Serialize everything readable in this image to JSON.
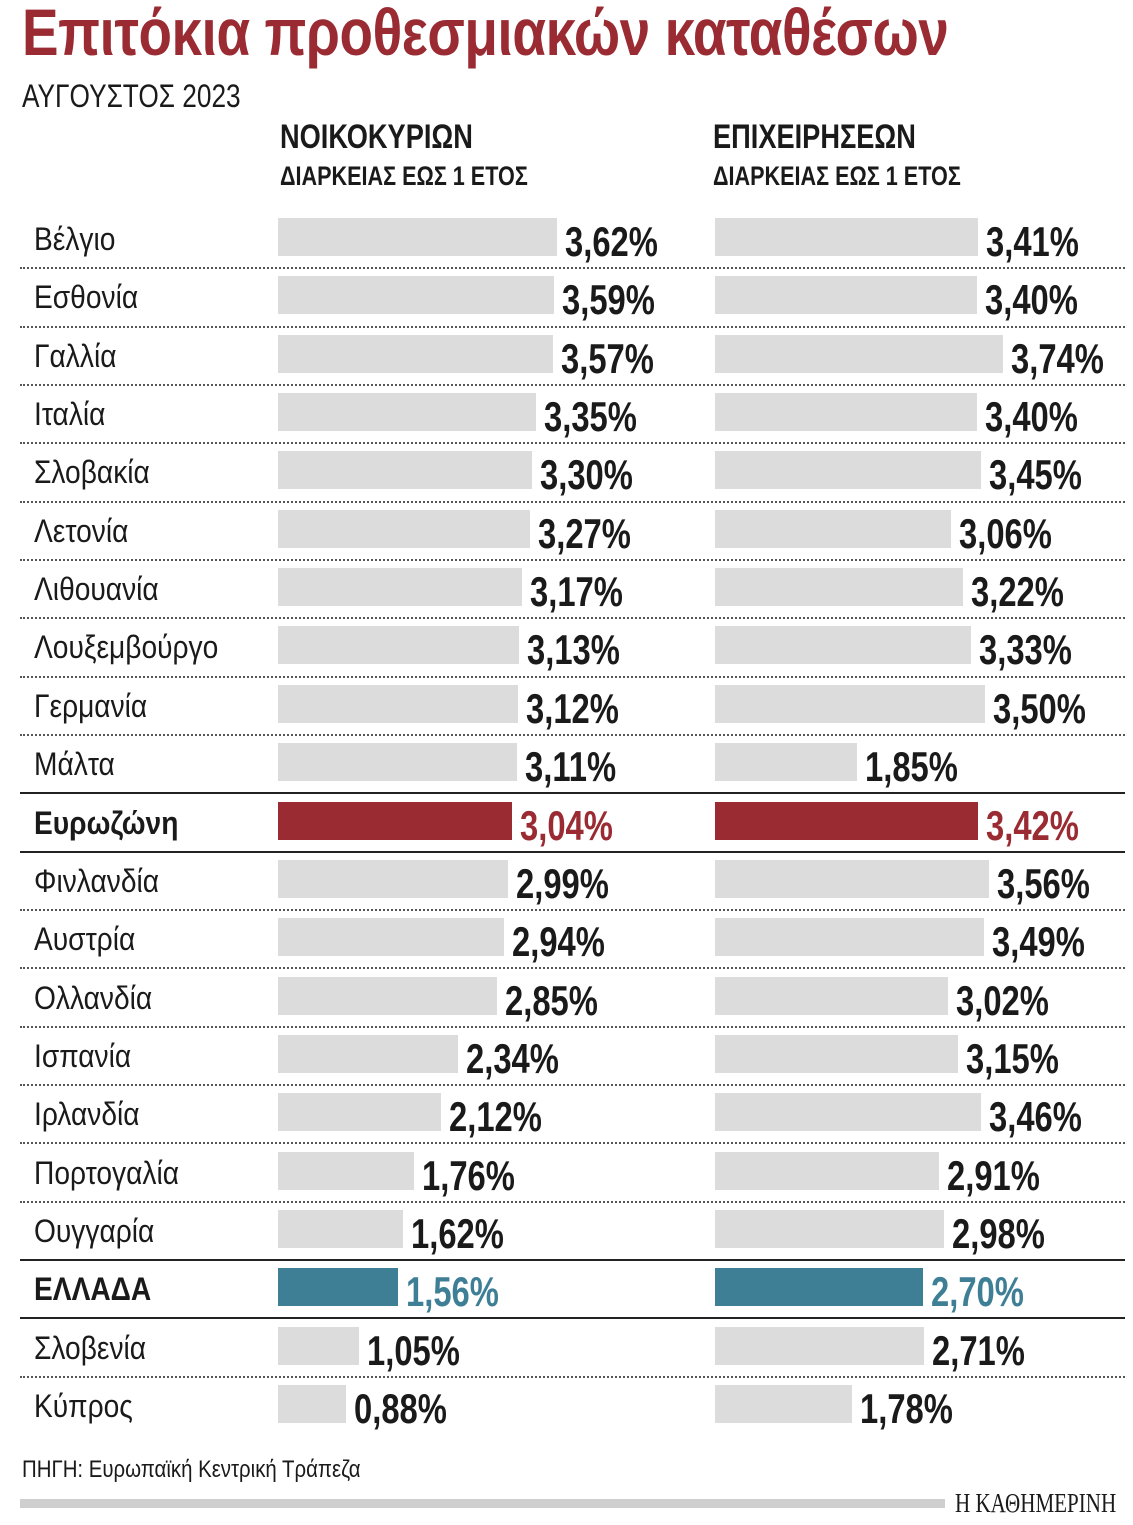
{
  "chart_data": {
    "type": "bar",
    "orientation": "horizontal",
    "title": "Επιτόκια προθεσμιακών καταθέσων",
    "subtitle": "ΑΥΓΟΥΣΤΟΣ 2023",
    "value_format": "comma-decimal percent",
    "categories": [
      "Βέλγιο",
      "Εσθονία",
      "Γαλλία",
      "Ιταλία",
      "Σλοβακία",
      "Λετονία",
      "Λιθουανία",
      "Λουξεμβούργο",
      "Γερμανία",
      "Μάλτα",
      "Ευρωζώνη",
      "Φινλανδία",
      "Αυστρία",
      "Ολλανδία",
      "Ισπανία",
      "Ιρλανδία",
      "Πορτογαλία",
      "Ουγγαρία",
      "ΕΛΛΑΔΑ",
      "Σλοβενία",
      "Κύπρος"
    ],
    "highlight": {
      "Ευρωζώνη": "#9a2b33",
      "ΕΛΛΑΔΑ": "#3f7f96"
    },
    "bar_color": "#dcdcdc",
    "series": [
      {
        "name": "ΝΟΙΚΟΚΥΡΙΩΝ",
        "subtitle": "ΔΙΑΡΚΕΙΑΣ ΕΩΣ 1 ΕΤΟΣ",
        "values": [
          3.62,
          3.59,
          3.57,
          3.35,
          3.3,
          3.27,
          3.17,
          3.13,
          3.12,
          3.11,
          3.04,
          2.99,
          2.94,
          2.85,
          2.34,
          2.12,
          1.76,
          1.62,
          1.56,
          1.05,
          0.88
        ],
        "labels": [
          "3,62%",
          "3,59%",
          "3,57%",
          "3,35%",
          "3,30%",
          "3,27%",
          "3,17%",
          "3,13%",
          "3,12%",
          "3,11%",
          "3,04%",
          "2,99%",
          "2,94%",
          "2,85%",
          "2,34%",
          "2,12%",
          "1,76%",
          "1,62%",
          "1,56%",
          "1,05%",
          "0,88%"
        ]
      },
      {
        "name": "ΕΠΙΧΕΙΡΗΣΕΩΝ",
        "subtitle": "ΔΙΑΡΚΕΙΑΣ ΕΩΣ 1 ΕΤΟΣ",
        "values": [
          3.41,
          3.4,
          3.74,
          3.4,
          3.45,
          3.06,
          3.22,
          3.33,
          3.5,
          1.85,
          3.42,
          3.56,
          3.49,
          3.02,
          3.15,
          3.46,
          2.91,
          2.98,
          2.7,
          2.71,
          1.78
        ],
        "labels": [
          "3,41%",
          "3,40%",
          "3,74%",
          "3,40%",
          "3,45%",
          "3,06%",
          "3,22%",
          "3,33%",
          "3,50%",
          "1,85%",
          "3,42%",
          "3,56%",
          "3,49%",
          "3,02%",
          "3,15%",
          "3,46%",
          "2,91%",
          "2,98%",
          "2,70%",
          "2,71%",
          "1,78%"
        ]
      }
    ],
    "xlim": [
      0,
      3.74
    ],
    "grid": false,
    "source": "ΠΗΓΗ: Ευρωπαϊκή Κεντρική Τράπεζα",
    "brand": "Η ΚΑΘΗΜΕΡΙΝΗ"
  }
}
